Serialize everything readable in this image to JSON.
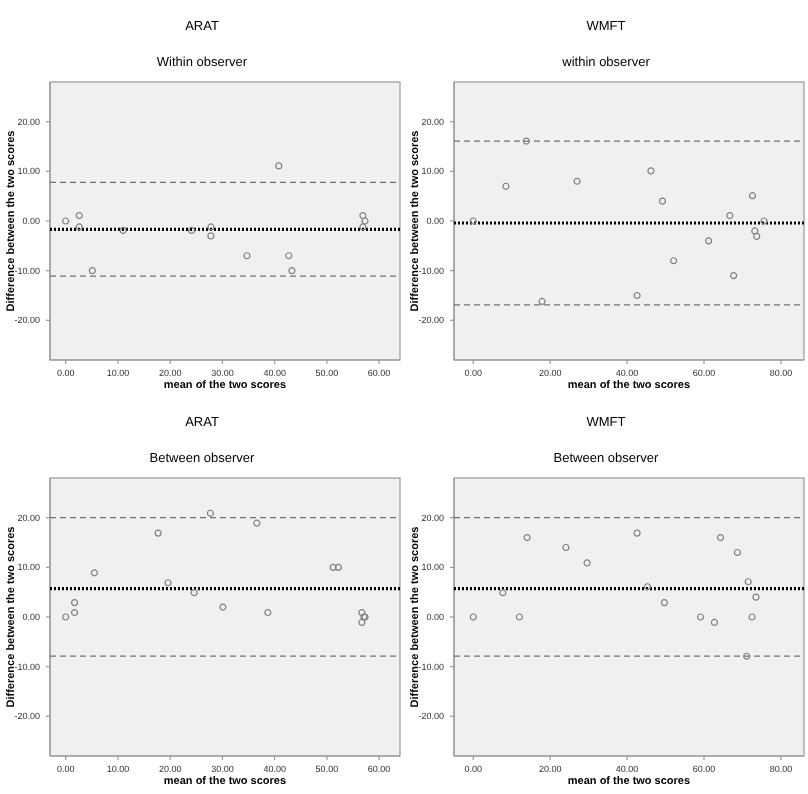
{
  "chart_data": [
    {
      "type": "scatter",
      "title": "ARAT",
      "subtitle": "Within observer",
      "xlabel": "mean of the two scores",
      "ylabel": "Difference between the two scores",
      "marker": "circle",
      "grid": false,
      "xlim": [
        -3,
        64
      ],
      "ylim": [
        -28,
        28
      ],
      "xticks": [
        {
          "value": 0,
          "label": "0.00"
        },
        {
          "value": 10,
          "label": "10.00"
        },
        {
          "value": 20,
          "label": "20.00"
        },
        {
          "value": 30,
          "label": "30.00"
        },
        {
          "value": 40,
          "label": "40.00"
        },
        {
          "value": 50,
          "label": "50.00"
        },
        {
          "value": 60,
          "label": "60.00"
        }
      ],
      "yticks": [
        {
          "value": -20,
          "label": "-20.00"
        },
        {
          "value": -10,
          "label": "-10.00"
        },
        {
          "value": 0,
          "label": "0.00"
        },
        {
          "value": 10,
          "label": "10.00"
        },
        {
          "value": 20,
          "label": "20.00"
        }
      ],
      "ref_lines": [
        {
          "axis": "y",
          "value": -1.7,
          "color": "#000000",
          "line_style": "dotted"
        },
        {
          "axis": "y",
          "value": 7.8,
          "color": "#707070",
          "line_style": "dashed"
        },
        {
          "axis": "y",
          "value": -11.1,
          "color": "#707070",
          "line_style": "dashed"
        }
      ],
      "series": [
        {
          "color": "#808080",
          "x": [
            0,
            2.6,
            2.6,
            5.1,
            11,
            24.1,
            27.8,
            27.8,
            34.7,
            40.8,
            42.7,
            43.3,
            56.9,
            57.3,
            56.9
          ],
          "values": [
            0,
            1.1,
            -1.2,
            -10,
            -1.9,
            -1.9,
            -1.2,
            -3,
            -7,
            11.1,
            -7,
            -10,
            1.1,
            0,
            -1.2
          ]
        }
      ]
    },
    {
      "type": "scatter",
      "title": "WMFT",
      "subtitle": "within observer",
      "xlabel": "mean of the two scores",
      "ylabel": "Difference between the two scores",
      "marker": "circle",
      "grid": false,
      "xlim": [
        -5,
        86
      ],
      "ylim": [
        -28,
        28
      ],
      "xticks": [
        {
          "value": 0,
          "label": "0.00"
        },
        {
          "value": 20,
          "label": "20.00"
        },
        {
          "value": 40,
          "label": "40.00"
        },
        {
          "value": 60,
          "label": "60.00"
        },
        {
          "value": 80,
          "label": "80.00"
        }
      ],
      "yticks": [
        {
          "value": -20,
          "label": "-20.00"
        },
        {
          "value": -10,
          "label": "-10.00"
        },
        {
          "value": 0,
          "label": "0.00"
        },
        {
          "value": 10,
          "label": "10.00"
        },
        {
          "value": 20,
          "label": "20.00"
        }
      ],
      "ref_lines": [
        {
          "axis": "y",
          "value": -0.4,
          "color": "#000000",
          "line_style": "dotted"
        },
        {
          "axis": "y",
          "value": 16.1,
          "color": "#707070",
          "line_style": "dashed"
        },
        {
          "axis": "y",
          "value": -16.9,
          "color": "#707070",
          "line_style": "dashed"
        }
      ],
      "series": [
        {
          "color": "#808080",
          "x": [
            0,
            8.5,
            13.8,
            17.9,
            27,
            42.6,
            46.2,
            49.2,
            52.1,
            61.2,
            66.7,
            67.7,
            72.6,
            73.2,
            73.7,
            75.6
          ],
          "values": [
            0,
            7,
            16.1,
            -16.2,
            8,
            -15,
            10.1,
            4,
            -8,
            -4,
            1.1,
            -11,
            5.1,
            -2,
            -3.1,
            0
          ]
        }
      ]
    },
    {
      "type": "scatter",
      "title": "ARAT",
      "subtitle": "Between observer",
      "xlabel": "mean of the two scores",
      "ylabel": "Difference between the two scores",
      "marker": "circle",
      "grid": false,
      "xlim": [
        -3,
        64
      ],
      "ylim": [
        -28,
        28
      ],
      "xticks": [
        {
          "value": 0,
          "label": "0.00"
        },
        {
          "value": 10,
          "label": "10.00"
        },
        {
          "value": 20,
          "label": "20.00"
        },
        {
          "value": 30,
          "label": "30.00"
        },
        {
          "value": 40,
          "label": "40.00"
        },
        {
          "value": 50,
          "label": "50.00"
        },
        {
          "value": 60,
          "label": "60.00"
        }
      ],
      "yticks": [
        {
          "value": -20,
          "label": "-20.00"
        },
        {
          "value": -10,
          "label": "-10.00"
        },
        {
          "value": 0,
          "label": "0.00"
        },
        {
          "value": 10,
          "label": "10.00"
        },
        {
          "value": 20,
          "label": "20.00"
        }
      ],
      "ref_lines": [
        {
          "axis": "y",
          "value": 5.7,
          "color": "#000000",
          "line_style": "dotted"
        },
        {
          "axis": "y",
          "value": 20,
          "color": "#707070",
          "line_style": "dashed"
        },
        {
          "axis": "y",
          "value": -7.9,
          "color": "#707070",
          "line_style": "dashed"
        }
      ],
      "series": [
        {
          "color": "#808080",
          "x": [
            0,
            1.7,
            1.7,
            5.5,
            17.7,
            19.6,
            24.6,
            27.7,
            30.1,
            36.6,
            38.7,
            51.2,
            52.2,
            56.7,
            57.1,
            56.7,
            57.3
          ],
          "values": [
            0,
            2.9,
            0.9,
            8.9,
            16.9,
            6.9,
            4.9,
            20.9,
            2,
            18.9,
            0.9,
            10,
            10,
            0.9,
            0,
            -1.1,
            0
          ]
        }
      ]
    },
    {
      "type": "scatter",
      "title": "WMFT",
      "subtitle": "Between observer",
      "xlabel": "mean of the two scores",
      "ylabel": "Difference between the two scores",
      "marker": "circle",
      "grid": false,
      "xlim": [
        -5,
        86
      ],
      "ylim": [
        -28,
        28
      ],
      "xticks": [
        {
          "value": 0,
          "label": "0.00"
        },
        {
          "value": 20,
          "label": "20.00"
        },
        {
          "value": 40,
          "label": "40.00"
        },
        {
          "value": 60,
          "label": "60.00"
        },
        {
          "value": 80,
          "label": "80.00"
        }
      ],
      "yticks": [
        {
          "value": -20,
          "label": "-20.00"
        },
        {
          "value": -10,
          "label": "-10.00"
        },
        {
          "value": 0,
          "label": "0.00"
        },
        {
          "value": 10,
          "label": "10.00"
        },
        {
          "value": 20,
          "label": "20.00"
        }
      ],
      "ref_lines": [
        {
          "axis": "y",
          "value": 5.7,
          "color": "#000000",
          "line_style": "dotted"
        },
        {
          "axis": "y",
          "value": 20,
          "color": "#707070",
          "line_style": "dashed"
        },
        {
          "axis": "y",
          "value": -7.9,
          "color": "#707070",
          "line_style": "dashed"
        }
      ],
      "series": [
        {
          "color": "#808080",
          "x": [
            0,
            7.7,
            12,
            14,
            24.1,
            29.6,
            42.6,
            45.3,
            49.7,
            59.1,
            62.7,
            64.3,
            68.7,
            71.5,
            73.5,
            72.5,
            71.1
          ],
          "values": [
            0,
            4.9,
            0,
            16,
            14,
            10.9,
            16.9,
            6.1,
            2.9,
            0,
            -1.1,
            16,
            13,
            7.1,
            4,
            0,
            -7.9
          ]
        }
      ]
    }
  ]
}
